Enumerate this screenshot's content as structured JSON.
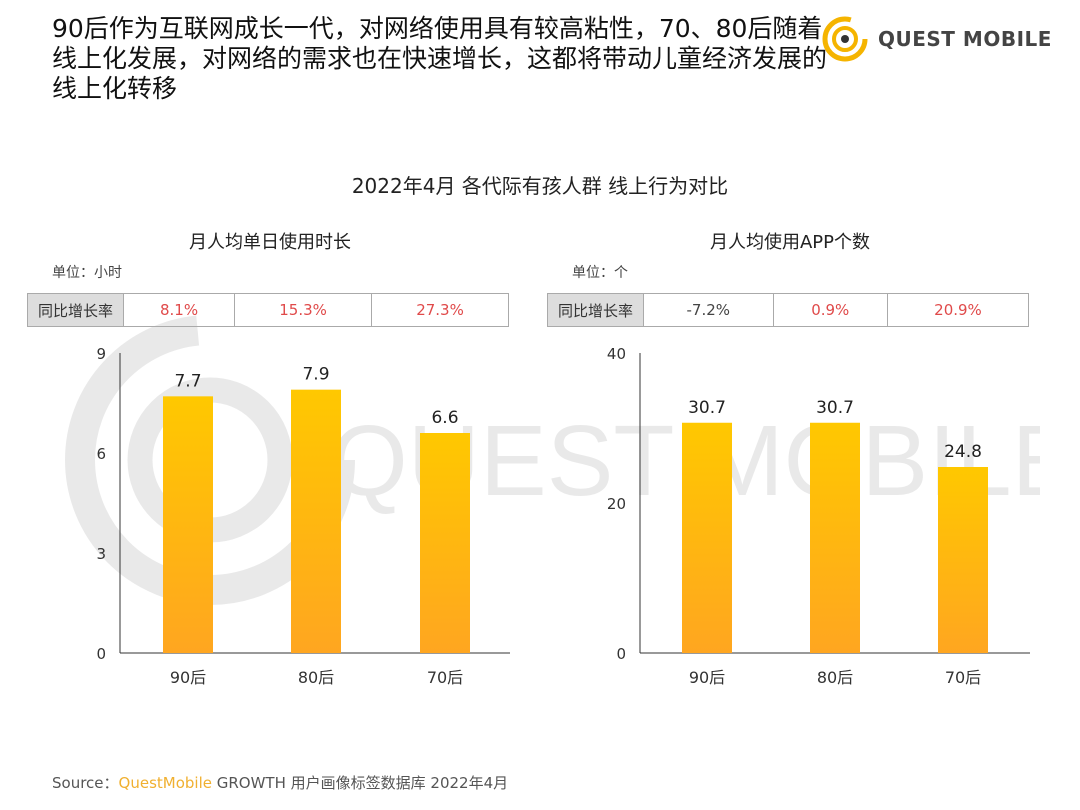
{
  "headline": "90后作为互联网成长一代，对网络使用具有较高粘性，70、80后随着线上化发展，对网络的需求也在快速增长，这都将带动儿童经济发展的线上化转移",
  "logo": {
    "name": "QUEST MOBILE"
  },
  "watermark": "QUEST MOBILE",
  "colors": {
    "bar_top": "#ffc800",
    "bar_bottom": "#ffa620",
    "positive": "#e04a4a",
    "brand": "#f0b030"
  },
  "chart_data": [
    {
      "type": "bar",
      "title": "2022年4月 各代际有孩人群 线上行为对比",
      "subtitle": "月人均单日使用时长",
      "unit": "单位：小时",
      "categories": [
        "90后",
        "80后",
        "70后"
      ],
      "values": [
        7.7,
        7.9,
        6.6
      ],
      "value_labels": [
        "7.7",
        "7.9",
        "6.6"
      ],
      "ylim": [
        0,
        9
      ],
      "yticks": [
        "0",
        "3",
        "6",
        "9"
      ],
      "tick_values": [
        0,
        3,
        6,
        9
      ],
      "yoy_label": "同比增长率",
      "yoy": [
        "8.1%",
        "15.3%",
        "27.3%"
      ]
    },
    {
      "type": "bar",
      "subtitle": "月人均使用APP个数",
      "unit": "单位：个",
      "categories": [
        "90后",
        "80后",
        "70后"
      ],
      "values": [
        30.7,
        30.7,
        24.8
      ],
      "value_labels": [
        "30.7",
        "30.7",
        "24.8"
      ],
      "ylim": [
        0,
        40
      ],
      "yticks": [
        "0",
        "20",
        "40"
      ],
      "tick_values": [
        0,
        20,
        40
      ],
      "yoy_label": "同比增长率",
      "yoy": [
        "-7.2%",
        "0.9%",
        "20.9%"
      ]
    }
  ],
  "source": {
    "prefix": "Source：",
    "brand": "QuestMobile",
    "rest": " GROWTH 用户画像标签数据库 2022年4月"
  }
}
